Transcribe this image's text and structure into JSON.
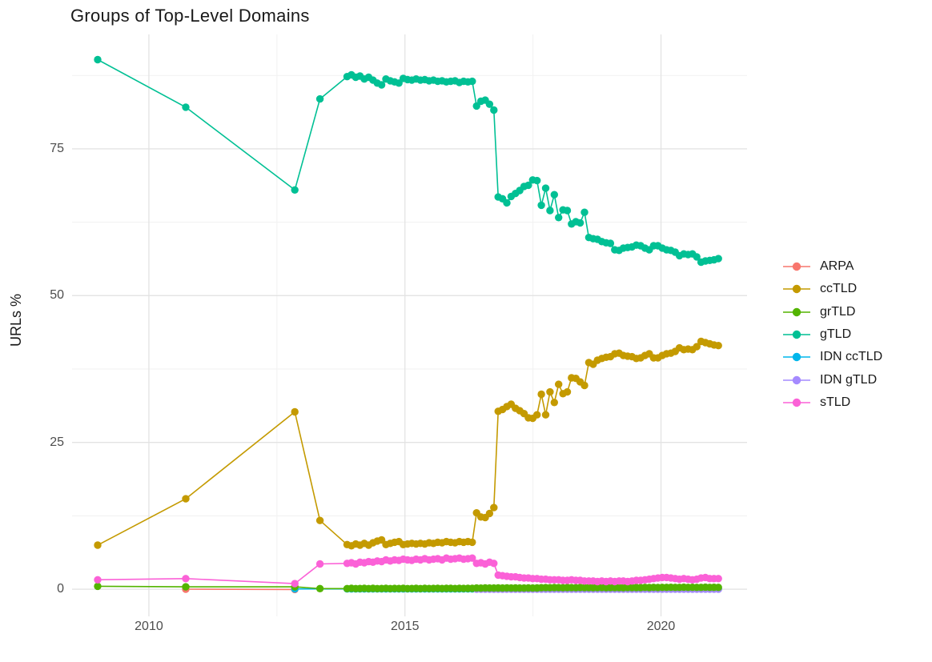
{
  "chart_data": {
    "type": "line",
    "title": "Groups of Top-Level Domains",
    "xlabel": "",
    "ylabel": "URLs %",
    "x_ticks": [
      2010,
      2015,
      2020
    ],
    "x_minor_ticks": [
      2012.5,
      2017.5
    ],
    "y_ticks": [
      0,
      25,
      50,
      75
    ],
    "y_minor_ticks": [
      12.5,
      37.5,
      62.5,
      87.5
    ],
    "x_range": [
      2008.5,
      2021.68
    ],
    "y_range": [
      -4.63,
      94.49
    ],
    "grid": true,
    "legend_position": "right",
    "grid_major_color": "#e3e3e3",
    "grid_minor_color": "#f1f1f1",
    "z_order": [
      "ARPA",
      "IDN ccTLD",
      "IDN gTLD",
      "grTLD",
      "ccTLD",
      "gTLD",
      "sTLD"
    ],
    "series": [
      {
        "name": "ARPA",
        "color": "#F8766D",
        "points": [
          [
            2010.72,
            0.0
          ],
          [
            2012.85,
            -0.05
          ]
        ]
      },
      {
        "name": "ccTLD",
        "color": "#C49A00",
        "points": [
          [
            2009.0,
            7.5
          ],
          [
            2010.72,
            15.4
          ],
          [
            2012.85,
            30.2
          ],
          [
            2013.34,
            11.7
          ]
        ],
        "dense": {
          "x_start": 2013.87,
          "x_step": 0.0843,
          "values": [
            7.6,
            7.4,
            7.7,
            7.5,
            7.8,
            7.5,
            7.9,
            8.2,
            8.4,
            7.6,
            7.8,
            8.0,
            8.1,
            7.6,
            7.7,
            7.8,
            7.7,
            7.8,
            7.7,
            7.9,
            7.8,
            8.0,
            7.9,
            8.1,
            8.0,
            7.9,
            8.1,
            8.0,
            8.1,
            8.0,
            13.0,
            12.3,
            12.2,
            12.9,
            13.9,
            30.3,
            30.6,
            31.1,
            31.5,
            30.8,
            30.4,
            29.9,
            29.2,
            29.1,
            29.7,
            33.2,
            29.7,
            33.6,
            31.8,
            34.9,
            33.3,
            33.6,
            36.0,
            35.9,
            35.3,
            34.7,
            38.6,
            38.3,
            39.0,
            39.3,
            39.5,
            39.6,
            40.1,
            40.2,
            39.8,
            39.7,
            39.6,
            39.3,
            39.4,
            39.8,
            40.1,
            39.4,
            39.4,
            39.8,
            40.1,
            40.2,
            40.5,
            41.1,
            40.8,
            40.9,
            40.8,
            41.3,
            42.2,
            42.0,
            41.8,
            41.6,
            41.5
          ]
        }
      },
      {
        "name": "grTLD",
        "color": "#53B400",
        "points": [
          [
            2009.0,
            0.5
          ],
          [
            2010.72,
            0.4
          ],
          [
            2012.85,
            0.4
          ],
          [
            2013.34,
            0.1
          ]
        ],
        "dense": {
          "x_start": 2013.87,
          "x_step": 0.0843,
          "values": [
            0.1,
            0.15,
            0.1,
            0.12,
            0.15,
            0.1,
            0.14,
            0.1,
            0.12,
            0.15,
            0.1,
            0.13,
            0.12,
            0.15,
            0.1,
            0.12,
            0.14,
            0.1,
            0.15,
            0.12,
            0.13,
            0.15,
            0.12,
            0.14,
            0.15,
            0.12,
            0.15,
            0.13,
            0.14,
            0.15,
            0.2,
            0.18,
            0.22,
            0.2,
            0.19,
            0.21,
            0.2,
            0.22,
            0.2,
            0.21,
            0.19,
            0.2,
            0.22,
            0.2,
            0.21,
            0.25,
            0.27,
            0.25,
            0.28,
            0.26,
            0.25,
            0.28,
            0.27,
            0.25,
            0.29,
            0.26,
            0.28,
            0.25,
            0.27,
            0.29,
            0.25,
            0.28,
            0.26,
            0.27,
            0.25,
            0.29,
            0.27,
            0.28,
            0.26,
            0.3,
            0.28,
            0.3,
            0.29,
            0.31,
            0.3,
            0.32,
            0.3,
            0.31,
            0.33,
            0.3,
            0.32,
            0.31,
            0.3,
            0.33,
            0.31,
            0.32,
            0.3
          ]
        }
      },
      {
        "name": "gTLD",
        "color": "#00C094",
        "points": [
          [
            2009.0,
            90.2
          ],
          [
            2010.72,
            82.1
          ],
          [
            2012.85,
            68.0
          ],
          [
            2013.34,
            83.5
          ]
        ],
        "dense": {
          "x_start": 2013.87,
          "x_step": 0.0843,
          "values": [
            87.3,
            87.6,
            87.2,
            87.4,
            86.9,
            87.2,
            86.7,
            86.2,
            85.9,
            86.9,
            86.6,
            86.4,
            86.2,
            87.0,
            86.8,
            86.7,
            86.9,
            86.7,
            86.8,
            86.6,
            86.7,
            86.5,
            86.6,
            86.4,
            86.5,
            86.6,
            86.3,
            86.5,
            86.4,
            86.5,
            82.3,
            83.1,
            83.3,
            82.6,
            81.6,
            66.8,
            66.5,
            65.8,
            66.9,
            67.4,
            67.9,
            68.6,
            68.8,
            69.7,
            69.6,
            65.4,
            68.3,
            64.5,
            67.2,
            63.3,
            64.6,
            64.5,
            62.2,
            62.6,
            62.4,
            64.2,
            59.9,
            59.7,
            59.6,
            59.2,
            59.0,
            58.9,
            57.8,
            57.7,
            58.1,
            58.2,
            58.3,
            58.6,
            58.5,
            58.1,
            57.8,
            58.5,
            58.5,
            58.1,
            57.8,
            57.7,
            57.4,
            56.8,
            57.1,
            57.0,
            57.1,
            56.6,
            55.7,
            55.9,
            56.0,
            56.1,
            56.3
          ]
        }
      },
      {
        "name": "IDN ccTLD",
        "color": "#00B6EB",
        "points": [
          [
            2012.85,
            0.05
          ]
        ],
        "dense": {
          "x_start": 2013.87,
          "x_step": 0.0843,
          "values": [
            0.05,
            0.05,
            0.05,
            0.05,
            0.05,
            0.05,
            0.05,
            0.05,
            0.05,
            0.05,
            0.05,
            0.05,
            0.05,
            0.05,
            0.05,
            0.05,
            0.05,
            0.05,
            0.05,
            0.05,
            0.05,
            0.05,
            0.05,
            0.05,
            0.05,
            0.05,
            0.05,
            0.05,
            0.05,
            0.05,
            0.05,
            0.05,
            0.05,
            0.05,
            0.05,
            0.05,
            0.05,
            0.05,
            0.05,
            0.05,
            0.05,
            0.05,
            0.05,
            0.05,
            0.05,
            0.05,
            0.05,
            0.05,
            0.05,
            0.05,
            0.05,
            0.05,
            0.05,
            0.05,
            0.05,
            0.05,
            0.05,
            0.05,
            0.05,
            0.05,
            0.05,
            0.05,
            0.05,
            0.05,
            0.05,
            0.05,
            0.05,
            0.05,
            0.05,
            0.05,
            0.05,
            0.05,
            0.05,
            0.05,
            0.05,
            0.05,
            0.05,
            0.05,
            0.05,
            0.05,
            0.05,
            0.05,
            0.05,
            0.05,
            0.05,
            0.05,
            0.05
          ]
        }
      },
      {
        "name": "IDN gTLD",
        "color": "#A58AFF",
        "points": [],
        "dense": {
          "x_start": 2016.4,
          "x_step": 0.0843,
          "values": [
            0,
            0,
            0,
            0,
            0,
            0,
            0,
            0,
            0,
            0,
            0,
            0,
            0,
            0,
            0,
            0,
            0,
            0,
            0,
            0,
            0,
            0,
            0,
            0,
            0,
            0,
            0,
            0,
            0,
            0,
            0,
            0,
            0,
            0,
            0,
            0,
            0,
            0,
            0,
            0,
            0,
            0,
            0,
            0,
            0,
            0,
            0,
            0,
            0,
            0,
            0,
            0,
            0,
            0,
            0,
            0,
            0
          ]
        }
      },
      {
        "name": "sTLD",
        "color": "#FB61D7",
        "points": [
          [
            2009.0,
            1.6
          ],
          [
            2010.72,
            1.8
          ],
          [
            2012.85,
            0.95
          ],
          [
            2013.34,
            4.3
          ]
        ],
        "dense": {
          "x_start": 2013.87,
          "x_step": 0.0843,
          "values": [
            4.4,
            4.5,
            4.3,
            4.6,
            4.5,
            4.7,
            4.6,
            4.8,
            4.7,
            5.0,
            4.8,
            5.0,
            4.9,
            5.1,
            5.0,
            4.9,
            5.1,
            5.0,
            5.2,
            5.0,
            5.1,
            5.2,
            5.0,
            5.3,
            5.1,
            5.2,
            5.3,
            5.1,
            5.2,
            5.3,
            4.4,
            4.5,
            4.3,
            4.6,
            4.4,
            2.4,
            2.3,
            2.2,
            2.1,
            2.1,
            2.0,
            1.9,
            1.9,
            1.8,
            1.8,
            1.7,
            1.7,
            1.6,
            1.6,
            1.6,
            1.5,
            1.5,
            1.6,
            1.5,
            1.5,
            1.4,
            1.4,
            1.4,
            1.3,
            1.4,
            1.3,
            1.4,
            1.3,
            1.4,
            1.4,
            1.3,
            1.4,
            1.5,
            1.5,
            1.6,
            1.7,
            1.8,
            1.9,
            2.0,
            2.0,
            1.9,
            1.8,
            1.7,
            1.8,
            1.7,
            1.6,
            1.7,
            1.9,
            2.0,
            1.8,
            1.8,
            1.8
          ]
        }
      }
    ]
  }
}
